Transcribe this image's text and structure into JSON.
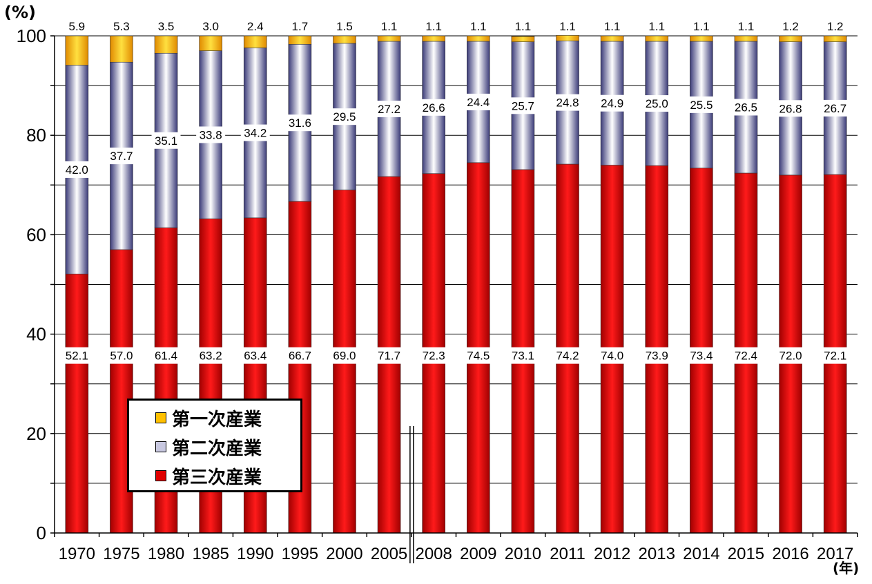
{
  "chart_data": {
    "type": "bar",
    "stacked": true,
    "ylabel": "(%)",
    "xlabel": "(年)",
    "ylim": [
      0,
      100
    ],
    "yticks": [
      0,
      20,
      40,
      60,
      80,
      100
    ],
    "categories": [
      "1970",
      "1975",
      "1980",
      "1985",
      "1990",
      "1995",
      "2000",
      "2005",
      "2008",
      "2009",
      "2010",
      "2011",
      "2012",
      "2013",
      "2014",
      "2015",
      "2016",
      "2017"
    ],
    "axis_break_after": "2005",
    "series": [
      {
        "name": "第三次産業",
        "color": "#e00000",
        "values": [
          52.1,
          57.0,
          61.4,
          63.2,
          63.4,
          66.7,
          69.0,
          71.7,
          72.3,
          74.5,
          73.1,
          74.2,
          74.0,
          73.9,
          73.4,
          72.4,
          72.0,
          72.1
        ]
      },
      {
        "name": "第二次産業",
        "color": "#c8c8e0",
        "values": [
          42.0,
          37.7,
          35.1,
          33.8,
          34.2,
          31.6,
          29.5,
          27.2,
          26.6,
          24.4,
          25.7,
          24.8,
          24.9,
          25.0,
          25.5,
          26.5,
          26.8,
          26.7
        ]
      },
      {
        "name": "第一次産業",
        "color": "#ffc000",
        "values": [
          5.9,
          5.3,
          3.5,
          3.0,
          2.4,
          1.7,
          1.5,
          1.1,
          1.1,
          1.1,
          1.1,
          1.1,
          1.1,
          1.1,
          1.1,
          1.1,
          1.2,
          1.2
        ]
      }
    ],
    "data_labels": {
      "第三次産業": [
        "52.1",
        "57.0",
        "61.4",
        "63.2",
        "63.4",
        "66.7",
        "69.0",
        "71.7",
        "72.3",
        "74.5",
        "73.1",
        "74.2",
        "74.0",
        "73.9",
        "73.4",
        "72.4",
        "72.0",
        "72.1"
      ],
      "第二次産業": [
        "42.0",
        "37.7",
        "35.1",
        "33.8",
        "34.2",
        "31.6",
        "29.5",
        "27.2",
        "26.6",
        "24.4",
        "25.7",
        "24.8",
        "24.9",
        "25.0",
        "25.5",
        "26.5",
        "26.8",
        "26.7"
      ],
      "第一次産業": [
        "5.9",
        "5.3",
        "3.5",
        "3.0",
        "2.4",
        "1.7",
        "1.5",
        "1.1",
        "1.1",
        "1.1",
        "1.1",
        "1.1",
        "1.1",
        "1.1",
        "1.1",
        "1.1",
        "1.2",
        "1.2"
      ]
    },
    "legend": {
      "placement": "bottom-left",
      "items": [
        {
          "label": "第一次産業",
          "color": "#ffc000"
        },
        {
          "label": "第二次産業",
          "color": "#c8c8e0"
        },
        {
          "label": "第三次産業",
          "color": "#e00000"
        }
      ]
    },
    "grid": true
  }
}
